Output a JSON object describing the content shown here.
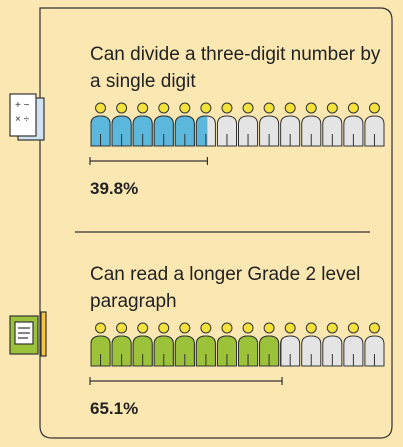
{
  "chart_data": [
    {
      "type": "pictograph",
      "title": "Can divide a three-digit number by a single digit",
      "values": [
        39.8
      ],
      "value_labels": [
        "39.8%"
      ],
      "color": "#5bb8dc"
    },
    {
      "type": "pictograph",
      "title": "Can read a longer Grade 2 level paragraph",
      "values": [
        65.1
      ],
      "value_labels": [
        "65.1%"
      ],
      "color": "#9cc23a"
    }
  ]
}
